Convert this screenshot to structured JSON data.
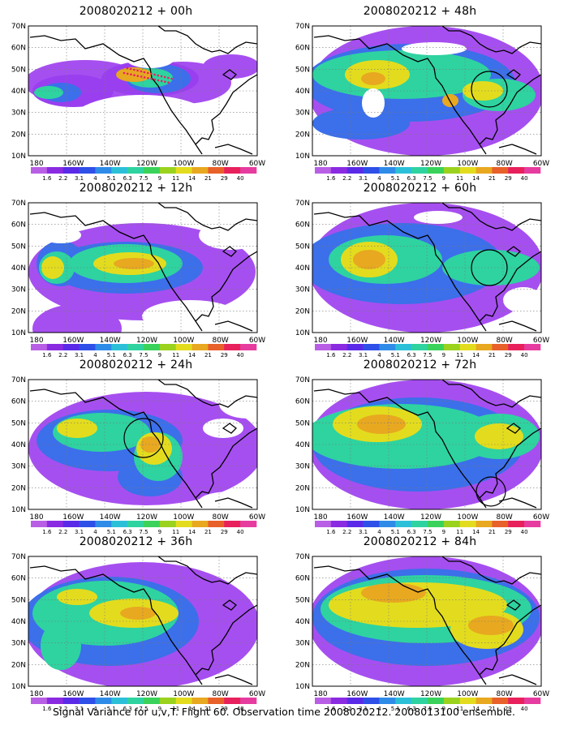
{
  "map_frame": {
    "lat_labels": [
      "70N",
      "60N",
      "50N",
      "40N",
      "30N",
      "20N",
      "10N"
    ],
    "lon_labels": [
      "180",
      "160W",
      "140W",
      "120W",
      "100W",
      "80W",
      "60W"
    ],
    "colorbar_labels": [
      "1.6",
      "2.2",
      "3.1",
      "4",
      "5.1",
      "6.3",
      "7.5",
      "9",
      "11",
      "14",
      "21",
      "29",
      "40"
    ],
    "colorbar_colors": [
      "#b85fe5",
      "#8a2be2",
      "#5a2ae8",
      "#2e4fe8",
      "#2e8ce8",
      "#2cc0d8",
      "#2ed3a0",
      "#3ad25a",
      "#9ad21e",
      "#e3dc1e",
      "#e8a820",
      "#e8602a",
      "#e8205c",
      "#e63ca0"
    ]
  },
  "panels": [
    {
      "title": "2008020212 + 00h"
    },
    {
      "title": "2008020212 + 12h"
    },
    {
      "title": "2008020212 + 24h"
    },
    {
      "title": "2008020212 + 36h"
    },
    {
      "title": "2008020212 + 48h"
    },
    {
      "title": "2008020212 + 60h"
    },
    {
      "title": "2008020212 + 72h"
    },
    {
      "title": "2008020212 + 84h"
    }
  ],
  "caption": "Signal Variance for u,v,T. Flight 60. Observation time 2008020212. 2008013100 ensemble."
}
